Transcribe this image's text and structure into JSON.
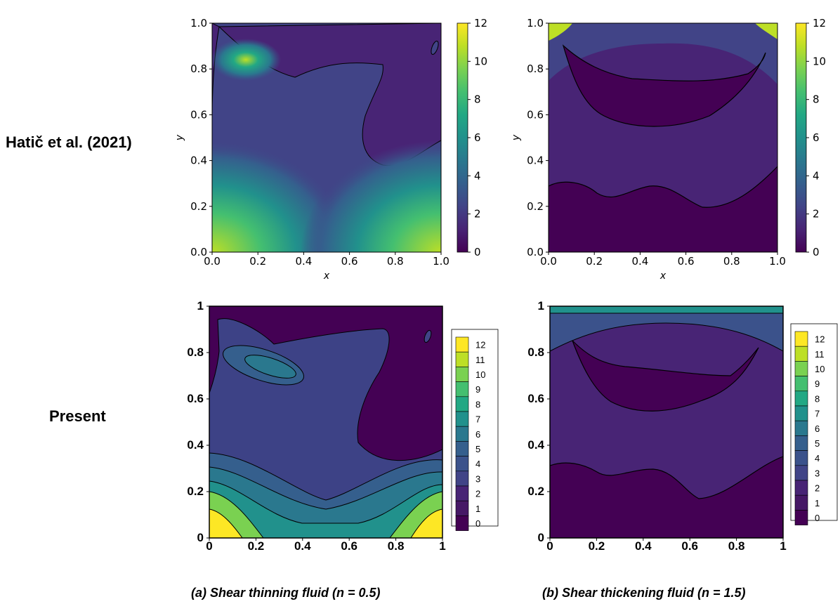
{
  "figure": {
    "row_labels": [
      "Hatič et al. (2021)",
      "Present"
    ],
    "captions": [
      "(a) Shear thinning fluid (n = 0.5)",
      "(b) Shear thickening fluid (n = 1.5)"
    ]
  },
  "colors": {
    "viridis": [
      "#440154",
      "#482475",
      "#414487",
      "#355f8d",
      "#2a788e",
      "#21918c",
      "#22a884",
      "#44bf70",
      "#7ad151",
      "#bddf26",
      "#fde725"
    ]
  },
  "chart_data": [
    {
      "type": "contour",
      "panel": "top-left",
      "title": "",
      "xlabel": "x",
      "ylabel": "y",
      "xlim": [
        0,
        1
      ],
      "ylim": [
        0,
        1
      ],
      "xticks": [
        "0.0",
        "0.2",
        "0.4",
        "0.6",
        "0.8",
        "1.0"
      ],
      "yticks": [
        "0.0",
        "0.2",
        "0.4",
        "0.6",
        "0.8",
        "1.0"
      ],
      "colorbar": {
        "range": [
          0,
          12
        ],
        "ticks": [
          "0",
          "2",
          "4",
          "6",
          "8",
          "10",
          "12"
        ]
      },
      "features": "Peak ~11 near (0.15, 0.83); high values (~10) at bottom corners; low region (0-1) in upper-right"
    },
    {
      "type": "contour",
      "panel": "top-right",
      "title": "",
      "xlabel": "x",
      "ylabel": "y",
      "xlim": [
        0,
        1
      ],
      "ylim": [
        0,
        1
      ],
      "xticks": [
        "0.0",
        "0.2",
        "0.4",
        "0.6",
        "0.8",
        "1.0"
      ],
      "yticks": [
        "0.0",
        "0.2",
        "0.4",
        "0.6",
        "0.8",
        "1.0"
      ],
      "colorbar": {
        "range": [
          0,
          12
        ],
        "ticks": [
          "0",
          "2",
          "4",
          "6",
          "8",
          "10",
          "12"
        ]
      },
      "features": "High values at top corners; crescent low region 0.55-0.8; bottom low band below ~0.3"
    },
    {
      "type": "contour",
      "panel": "bottom-left",
      "title": "",
      "xlabel": "",
      "ylabel": "",
      "xlim": [
        0,
        1
      ],
      "ylim": [
        0,
        1
      ],
      "xticks": [
        "0",
        "0.2",
        "0.4",
        "0.6",
        "0.8",
        "1"
      ],
      "yticks": [
        "0",
        "0.2",
        "0.4",
        "0.6",
        "0.8",
        "1"
      ],
      "colorbar": {
        "levels": [
          "12",
          "11",
          "10",
          "9",
          "8",
          "7",
          "6",
          "5",
          "4",
          "3",
          "2",
          "1",
          "0"
        ]
      },
      "features": "Peak ~5 near (0.3, 0.75); high values (12) at bottom corners"
    },
    {
      "type": "contour",
      "panel": "bottom-right",
      "title": "",
      "xlabel": "",
      "ylabel": "",
      "xlim": [
        0,
        1
      ],
      "ylim": [
        0,
        1
      ],
      "xticks": [
        "0",
        "0.2",
        "0.4",
        "0.6",
        "0.8",
        "1"
      ],
      "yticks": [
        "0",
        "0.2",
        "0.4",
        "0.6",
        "0.8",
        "1"
      ],
      "colorbar": {
        "levels": [
          "12",
          "11",
          "10",
          "9",
          "8",
          "7",
          "6",
          "5",
          "4",
          "3",
          "2",
          "1",
          "0"
        ]
      },
      "features": "High values along top lid; crescent low region; bottom low band"
    }
  ]
}
